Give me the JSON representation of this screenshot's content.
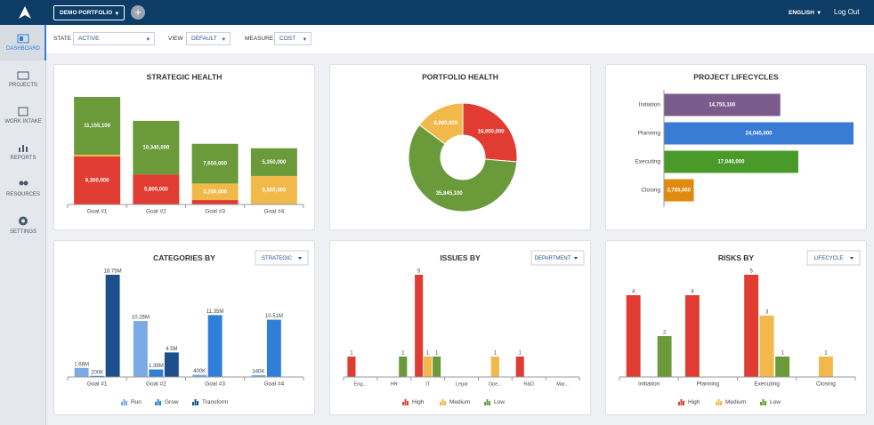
{
  "header": {
    "portfolio": "DEMO PORTFOLIO",
    "language": "ENGLISH",
    "logout": "Log Out"
  },
  "sidebar": [
    "DASHBOARD",
    "PROJECTS",
    "WORK INTAKE",
    "REPORTS",
    "RESOURCES",
    "SETTINGS"
  ],
  "filters": [
    {
      "label": "STATE",
      "value": "ACTIVE"
    },
    {
      "label": "VIEW",
      "value": "DEFAULT"
    },
    {
      "label": "MEASURE",
      "value": "COST"
    }
  ],
  "chart_data": [
    {
      "type": "stacked-bar",
      "title": "STRATEGIC HEALTH",
      "categories": [
        "Goal #1",
        "Goal #2",
        "Goal #3",
        "Goal #4"
      ],
      "series": [
        {
          "color": "#e03c31",
          "values": [
            9300000,
            5800000,
            850000,
            null
          ],
          "value_labels": [
            "9,300,000",
            "5,800,000",
            null,
            null
          ]
        },
        {
          "color": "#f0b94a",
          "values": [
            300000,
            null,
            3200000,
            5500000
          ],
          "value_labels": [
            null,
            null,
            "3,200,000",
            "5,500,000"
          ]
        },
        {
          "color": "#6a9a3a",
          "values": [
            11155100,
            10340000,
            7650000,
            5350000
          ],
          "value_labels": [
            "11,155,100",
            "10,340,000",
            "7,650,000",
            "5,350,000"
          ]
        }
      ]
    },
    {
      "type": "donut",
      "title": "PORTFOLIO HEALTH",
      "values": [
        16000000,
        35845100,
        8980000
      ],
      "value_labels": [
        "16,000,000",
        "35,845,100",
        "8,980,000"
      ],
      "colors": [
        "#e03c31",
        "#6a9a3a",
        "#f0b94a"
      ]
    },
    {
      "type": "hbar",
      "title": "PROJECT LIFECYCLES",
      "categories": [
        "Initiation",
        "Planning",
        "Executing",
        "Closing"
      ],
      "values": [
        14755100,
        24045000,
        17040000,
        3785000
      ],
      "value_labels": [
        "14,755,100",
        "24,045,000",
        "17,040,000",
        "3,785,000"
      ],
      "colors": [
        "#7b5a8c",
        "#3a7bd5",
        "#4a9a2a",
        "#e08a10"
      ]
    },
    {
      "type": "bar",
      "title": "CATEGORIES BY",
      "filter": "STRATEGIC",
      "categories": [
        "Goal #1",
        "Goal #2",
        "Goal #3",
        "Goal #4"
      ],
      "series": [
        {
          "name": "Run",
          "color": "#7aaae3",
          "values": [
            1660000,
            10260000,
            400000,
            340000
          ],
          "value_labels": [
            "1.66M",
            "10.26M",
            "400K",
            "340K"
          ]
        },
        {
          "name": "Grow",
          "color": "#2f7fd8",
          "values": [
            200000,
            1380000,
            11350000,
            10510000
          ],
          "value_labels": [
            "200K",
            "1.38M",
            "11.35M",
            "10.51M"
          ]
        },
        {
          "name": "Transform",
          "color": "#1d4f8c",
          "values": [
            18750000,
            4500000,
            null,
            null
          ],
          "value_labels": [
            "18.75M",
            "4.5M",
            null,
            null
          ]
        }
      ]
    },
    {
      "type": "bar",
      "title": "ISSUES BY",
      "filter": "DEPARTMENT",
      "categories": [
        "Eng...",
        "HR",
        "IT",
        "Legal",
        "Ope...",
        "R&D",
        "Mar..."
      ],
      "series": [
        {
          "name": "High",
          "color": "#e03c31",
          "values": [
            1,
            null,
            5,
            null,
            null,
            1,
            null
          ]
        },
        {
          "name": "Medium",
          "color": "#f0b94a",
          "values": [
            null,
            null,
            1,
            null,
            1,
            null,
            null
          ]
        },
        {
          "name": "Low",
          "color": "#6a9a3a",
          "values": [
            null,
            1,
            1,
            null,
            null,
            null,
            null
          ]
        }
      ]
    },
    {
      "type": "bar",
      "title": "RISKS BY",
      "filter": "LIFECYCLE",
      "categories": [
        "Initiation",
        "Planning",
        "Executing",
        "Closing"
      ],
      "series": [
        {
          "name": "High",
          "color": "#e03c31",
          "values": [
            4,
            4,
            5,
            null
          ]
        },
        {
          "name": "Medium",
          "color": "#f0b94a",
          "values": [
            null,
            null,
            3,
            1
          ]
        },
        {
          "name": "Low",
          "color": "#6a9a3a",
          "values": [
            2,
            null,
            1,
            null
          ]
        }
      ]
    }
  ]
}
